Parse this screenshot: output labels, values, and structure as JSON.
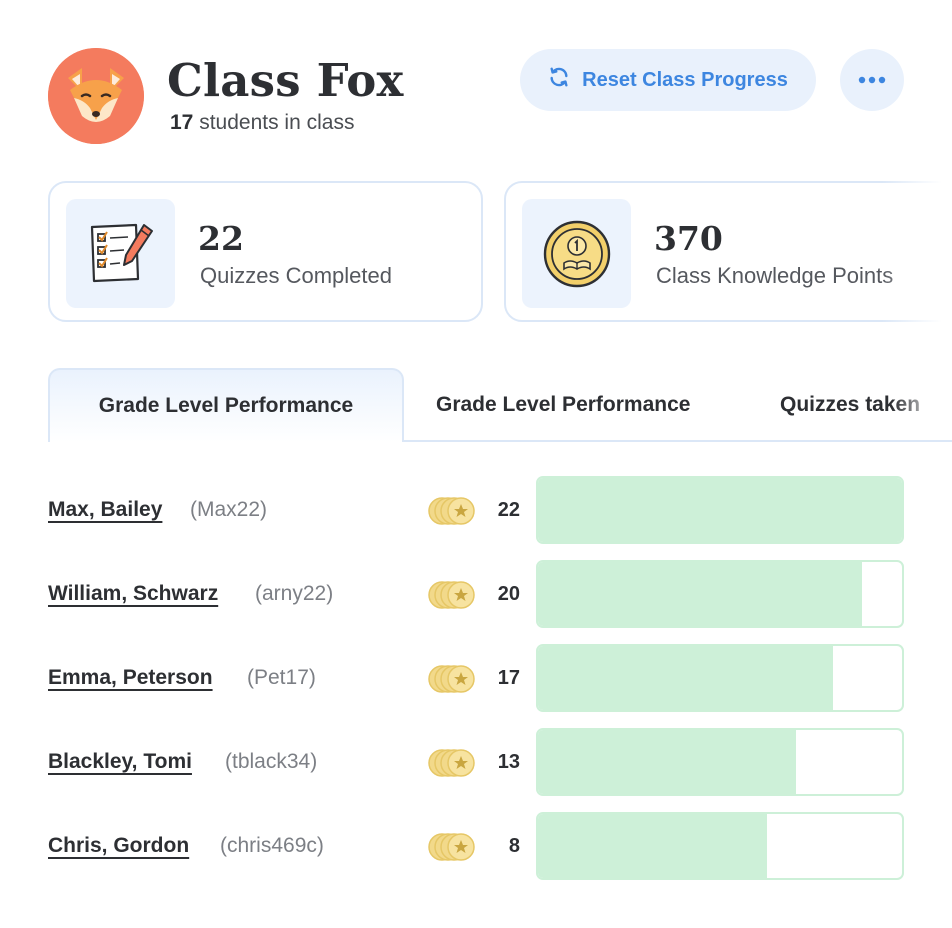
{
  "header": {
    "class_name": "Class Fox",
    "student_count": "17",
    "student_suffix": "students in class",
    "avatar_icon": "fox-avatar-icon",
    "reset_label": "Reset Class Progress",
    "reset_icon": "refresh-icon",
    "more_icon": "more-horizontal-icon",
    "accent_color": "#3d86e0"
  },
  "stats": [
    {
      "value": "22",
      "label": "Quizzes Completed",
      "icon": "checklist-pencil-icon"
    },
    {
      "value": "370",
      "label": "Class Knowledge Points",
      "icon": "gold-coin-icon"
    }
  ],
  "tabs": [
    {
      "label": "Grade Level Performance",
      "active": true
    },
    {
      "label": "Grade Level Performance",
      "active": false
    },
    {
      "label": "Quizzes taken",
      "active": false
    }
  ],
  "students": [
    {
      "name": "Max, Bailey",
      "username": "(Max22)",
      "score": "22",
      "progress": 1.0
    },
    {
      "name": "William, Schwarz",
      "username": "(arny22)",
      "score": "20",
      "progress": 0.89
    },
    {
      "name": "Emma, Peterson",
      "username": "(Pet17)",
      "score": "17",
      "progress": 0.81
    },
    {
      "name": "Blackley, Tomi",
      "username": "(tblack34)",
      "score": "13",
      "progress": 0.71
    },
    {
      "name": "Chris, Gordon",
      "username": "(chris469c)",
      "score": "8",
      "progress": 0.63
    }
  ],
  "colors": {
    "progress_fill": "#cdf0d8",
    "avatar_bg": "#f47b5e",
    "coin": "#f2d98a"
  }
}
